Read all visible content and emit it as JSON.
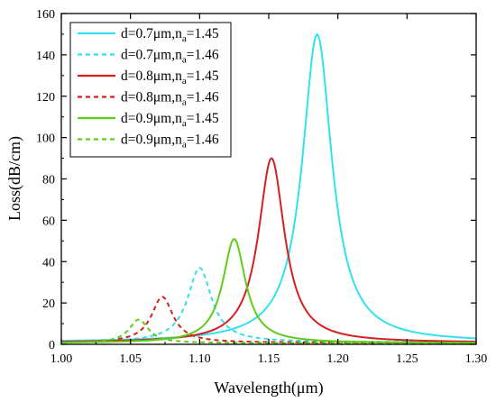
{
  "chart_data": {
    "type": "line",
    "xlabel": "Wavelength(μm)",
    "ylabel": "Loss(dB/cm)",
    "xlim": [
      1.0,
      1.3
    ],
    "ylim": [
      0,
      160
    ],
    "xticks": [
      "1.00",
      "1.05",
      "1.10",
      "1.15",
      "1.20",
      "1.25",
      "1.30"
    ],
    "yticks": [
      "0",
      "20",
      "40",
      "60",
      "80",
      "100",
      "120",
      "140",
      "160"
    ],
    "grid": false,
    "legend_position": "top-left",
    "series": [
      {
        "name": "d=0.7μm,na=1.45",
        "legend": {
          "main": "d=0.7μm,n",
          "sub": "a",
          "tail": "=1.45"
        },
        "color": "#33e0ee",
        "style": "solid",
        "peak_x": 1.185,
        "peak_y": 150,
        "half_width": 0.013,
        "baseline": 1.0
      },
      {
        "name": "d=0.7μm,na=1.46",
        "legend": {
          "main": "d=0.7μm,n",
          "sub": "a",
          "tail": "=1.46"
        },
        "color": "#33e0ee",
        "style": "dashed",
        "peak_x": 1.1,
        "peak_y": 37,
        "half_width": 0.0105,
        "baseline": 1.0
      },
      {
        "name": "d=0.8μm,na=1.45",
        "legend": {
          "main": "d=0.8μm,n",
          "sub": "a",
          "tail": "=1.45"
        },
        "color": "#d42020",
        "style": "solid",
        "peak_x": 1.152,
        "peak_y": 90,
        "half_width": 0.0115,
        "baseline": 0.8
      },
      {
        "name": "d=0.8μm,na=1.46",
        "legend": {
          "main": "d=0.8μm,n",
          "sub": "a",
          "tail": "=1.46"
        },
        "color": "#d42020",
        "style": "dashed",
        "peak_x": 1.073,
        "peak_y": 23,
        "half_width": 0.0095,
        "baseline": 0.8
      },
      {
        "name": "d=0.9μm,na=1.45",
        "legend": {
          "main": "d=0.9μm,n",
          "sub": "a",
          "tail": "=1.45"
        },
        "color": "#5fcc1a",
        "style": "solid",
        "peak_x": 1.125,
        "peak_y": 51,
        "half_width": 0.01,
        "baseline": 0.6
      },
      {
        "name": "d=0.9μm,na=1.46",
        "legend": {
          "main": "d=0.9μm,n",
          "sub": "a",
          "tail": "=1.46"
        },
        "color": "#5fcc1a",
        "style": "dashed",
        "peak_x": 1.056,
        "peak_y": 12,
        "half_width": 0.0085,
        "baseline": 0.6
      }
    ]
  }
}
